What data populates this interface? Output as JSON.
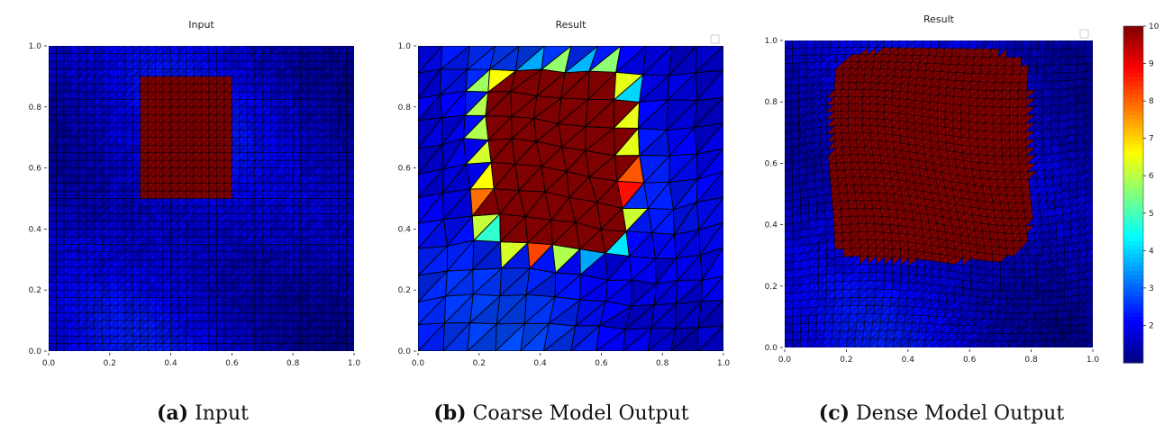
{
  "captions": [
    {
      "tag": "(a)",
      "text": "Input"
    },
    {
      "tag": "(b)",
      "text": "Coarse Model Output"
    },
    {
      "tag": "(c)",
      "text": "Dense Model Output"
    }
  ],
  "colors": {
    "cmap": [
      "#00007f",
      "#0000ff",
      "#007fff",
      "#00ffff",
      "#7fff7f",
      "#ffff00",
      "#ff7f00",
      "#ff0000",
      "#7f0000"
    ],
    "mesh_line": "#000000"
  },
  "chart_data": [
    {
      "type": "heatmap",
      "panel": "a",
      "title": "Input",
      "xlim": [
        0,
        1
      ],
      "ylim": [
        0,
        1
      ],
      "x_ticks": [
        "0.0",
        "0.2",
        "0.4",
        "0.6",
        "0.8",
        "1.0"
      ],
      "y_ticks": [
        "0.0",
        "0.2",
        "0.4",
        "0.6",
        "0.8",
        "1.0"
      ],
      "mesh": "uniform triangular mesh, 40x40 cells",
      "background_value": 1.8,
      "regions": [
        {
          "shape": "rectangle",
          "x": [
            0.3,
            0.6
          ],
          "y": [
            0.5,
            0.9
          ],
          "value": 10
        }
      ],
      "legend": "none"
    },
    {
      "type": "heatmap",
      "panel": "b",
      "title": "Result",
      "xlim": [
        0,
        1
      ],
      "ylim": [
        0,
        1
      ],
      "x_ticks": [
        "0.0",
        "0.2",
        "0.4",
        "0.6",
        "0.8",
        "1.0"
      ],
      "y_ticks": [
        "0.0",
        "0.2",
        "0.4",
        "0.6",
        "0.8",
        "1.0"
      ],
      "mesh": "deformed triangular mesh, 12x12 cells",
      "background_value": 2.2,
      "regions": [
        {
          "shape": "deformed square",
          "x": [
            0.23,
            0.68
          ],
          "y": [
            0.35,
            0.9
          ],
          "value": 10,
          "rim_values": [
            5,
            7,
            9
          ]
        }
      ],
      "legend": "top-right (empty)"
    },
    {
      "type": "heatmap",
      "panel": "c",
      "title": "Result",
      "xlim": [
        0,
        1
      ],
      "ylim": [
        0,
        1
      ],
      "x_ticks": [
        "0.0",
        "0.2",
        "0.4",
        "0.6",
        "0.8",
        "1.0"
      ],
      "y_ticks": [
        "0.0",
        "0.2",
        "0.4",
        "0.6",
        "0.8",
        "1.0"
      ],
      "mesh": "deformed triangular mesh, 40x40 cells",
      "background_value": 1.8,
      "regions": [
        {
          "shape": "rounded square",
          "x": [
            0.15,
            0.8
          ],
          "y": [
            0.28,
            0.97
          ],
          "value": 10
        }
      ],
      "legend": "top-right (empty)"
    }
  ],
  "colorbar": {
    "range": [
      1,
      10
    ],
    "ticks": [
      "2",
      "3",
      "4",
      "5",
      "6",
      "7",
      "8",
      "9",
      "10"
    ]
  }
}
